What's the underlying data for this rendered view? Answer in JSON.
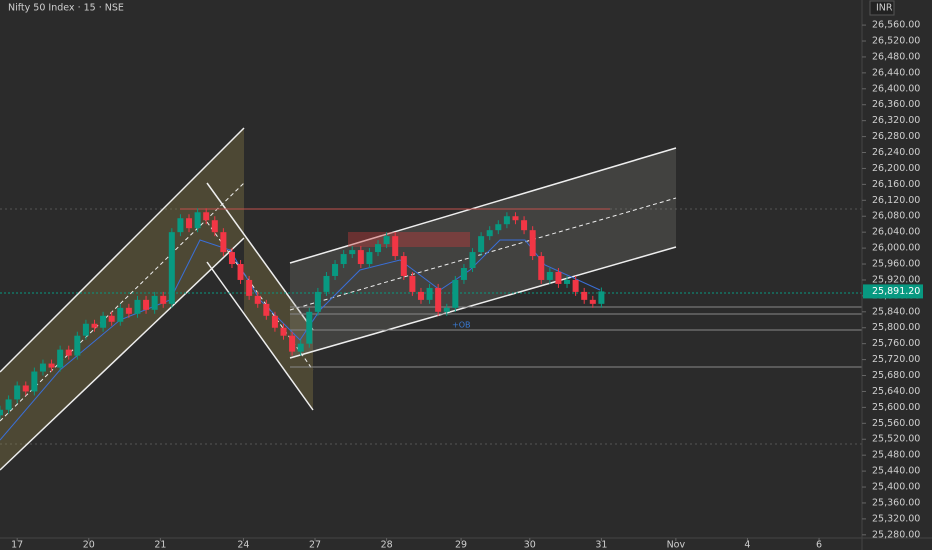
{
  "chart_data": {
    "type": "candlestick",
    "title": "Nifty 50 Index · 15 · NSE",
    "currency": "INR",
    "annotations": [
      "+OB"
    ],
    "up_color": "#089981",
    "down_color": "#f23645",
    "last_price": {
      "value": 25891.2,
      "label": "25,891.20"
    },
    "x": [
      0,
      3,
      6,
      9,
      12,
      15,
      18,
      21,
      24,
      27,
      30,
      33,
      36,
      39,
      42,
      45,
      48,
      51,
      54,
      57,
      60,
      63,
      66,
      69,
      72,
      75,
      78,
      81,
      84,
      87,
      90,
      93,
      96,
      99,
      102,
      105,
      108,
      111,
      114,
      117,
      120,
      123,
      126,
      129,
      132,
      135,
      138,
      141,
      144,
      147,
      150,
      153,
      156,
      159,
      162,
      165,
      168,
      171,
      174,
      177,
      180,
      183,
      186,
      189,
      192,
      195,
      198,
      201,
      204,
      207,
      210
    ],
    "open": [
      25580,
      25594,
      25620,
      25655,
      25640,
      25690,
      25710,
      25700,
      25745,
      25730,
      25780,
      25810,
      25800,
      25830,
      25815,
      25850,
      25835,
      25870,
      25845,
      25880,
      25860,
      26040,
      26075,
      26050,
      26090,
      26070,
      26040,
      25990,
      25960,
      25920,
      25880,
      25860,
      25830,
      25800,
      25780,
      25740,
      25760,
      25840,
      25890,
      25930,
      25960,
      25985,
      25995,
      25960,
      25990,
      26010,
      26030,
      25980,
      25930,
      25890,
      25870,
      25900,
      25840,
      25850,
      25920,
      25950,
      25990,
      26030,
      26045,
      26060,
      26080,
      26070,
      26045,
      25980,
      25920,
      25940,
      25910,
      25920,
      25890,
      25870,
      25860
    ],
    "high": [
      25604,
      25630,
      25665,
      25665,
      25700,
      25720,
      25720,
      25755,
      25755,
      25790,
      25820,
      25820,
      25840,
      25840,
      25860,
      25860,
      25880,
      25880,
      25890,
      25890,
      26050,
      26085,
      26085,
      26100,
      26100,
      26080,
      26050,
      26000,
      25970,
      25930,
      25890,
      25870,
      25840,
      25810,
      25790,
      25770,
      25850,
      25900,
      25940,
      25970,
      25995,
      26005,
      26005,
      26000,
      26020,
      26040,
      26040,
      25990,
      25940,
      25900,
      25910,
      25910,
      25860,
      25930,
      25960,
      26000,
      26040,
      26055,
      26070,
      26090,
      26090,
      26080,
      26055,
      25990,
      25950,
      25950,
      25930,
      25930,
      25900,
      25880,
      25901
    ],
    "low": [
      25570,
      25584,
      25610,
      25630,
      25630,
      25680,
      25690,
      25690,
      25720,
      25720,
      25770,
      25790,
      25790,
      25805,
      25805,
      25825,
      25825,
      25835,
      25835,
      25850,
      25850,
      26030,
      26040,
      26040,
      26060,
      26030,
      25980,
      25950,
      25910,
      25870,
      25850,
      25820,
      25790,
      25770,
      25730,
      25730,
      25750,
      25830,
      25880,
      25920,
      25950,
      25975,
      25950,
      25950,
      25980,
      26000,
      25970,
      25920,
      25880,
      25860,
      25860,
      25830,
      25830,
      25840,
      25910,
      25940,
      25980,
      26020,
      26035,
      26050,
      26060,
      26035,
      25970,
      25910,
      25910,
      25900,
      25900,
      25880,
      25860,
      25850,
      25850
    ],
    "close": [
      25594,
      25620,
      25655,
      25640,
      25690,
      25710,
      25700,
      25745,
      25730,
      25780,
      25810,
      25800,
      25830,
      25815,
      25850,
      25835,
      25870,
      25845,
      25880,
      25860,
      26040,
      26075,
      26050,
      26090,
      26070,
      26040,
      25990,
      25960,
      25920,
      25880,
      25860,
      25830,
      25800,
      25780,
      25740,
      25760,
      25840,
      25890,
      25930,
      25960,
      25985,
      25995,
      25960,
      25990,
      26010,
      26030,
      25980,
      25930,
      25890,
      25870,
      25900,
      25840,
      25850,
      25920,
      25950,
      25990,
      26030,
      26045,
      26060,
      26080,
      26070,
      26045,
      25980,
      25920,
      25940,
      25910,
      25920,
      25890,
      25870,
      25860,
      25891.2
    ],
    "xlim": [
      0,
      301
    ],
    "ylim": [
      25272,
      26623
    ],
    "xticks": [
      {
        "value": 6,
        "label": "17"
      },
      {
        "value": 31,
        "label": "20"
      },
      {
        "value": 56,
        "label": "21"
      },
      {
        "value": 85,
        "label": "24"
      },
      {
        "value": 110,
        "label": "27"
      },
      {
        "value": 135,
        "label": "28"
      },
      {
        "value": 161,
        "label": "29"
      },
      {
        "value": 185,
        "label": "30"
      },
      {
        "value": 210,
        "label": "31"
      },
      {
        "value": 236,
        "label": "Nov"
      },
      {
        "value": 261,
        "label": "4"
      },
      {
        "value": 286,
        "label": "6"
      }
    ],
    "yticks": [
      {
        "value": 25280,
        "label": "25,280.00"
      },
      {
        "value": 25320,
        "label": "25,320.00"
      },
      {
        "value": 25360,
        "label": "25,360.00"
      },
      {
        "value": 25400,
        "label": "25,400.00"
      },
      {
        "value": 25440,
        "label": "25,440.00"
      },
      {
        "value": 25480,
        "label": "25,480.00"
      },
      {
        "value": 25520,
        "label": "25,520.00"
      },
      {
        "value": 25560,
        "label": "25,560.00"
      },
      {
        "value": 25600,
        "label": "25,600.00"
      },
      {
        "value": 25640,
        "label": "25,640.00"
      },
      {
        "value": 25680,
        "label": "25,680.00"
      },
      {
        "value": 25720,
        "label": "25,720.00"
      },
      {
        "value": 25760,
        "label": "25,760.00"
      },
      {
        "value": 25800,
        "label": "25,800.00"
      },
      {
        "value": 25840,
        "label": "25,840.00"
      },
      {
        "value": 25880,
        "label": "25,880.00"
      },
      {
        "value": 25920,
        "label": "25,920.00"
      },
      {
        "value": 25960,
        "label": "25,960.00"
      },
      {
        "value": 26000,
        "label": "26,000.00"
      },
      {
        "value": 26040,
        "label": "26,040.00"
      },
      {
        "value": 26080,
        "label": "26,080.00"
      },
      {
        "value": 26120,
        "label": "26,120.00"
      },
      {
        "value": 26160,
        "label": "26,160.00"
      },
      {
        "value": 26200,
        "label": "26,200.00"
      },
      {
        "value": 26240,
        "label": "26,240.00"
      },
      {
        "value": 26280,
        "label": "26,280.00"
      },
      {
        "value": 26320,
        "label": "26,320.00"
      },
      {
        "value": 26360,
        "label": "26,360.00"
      },
      {
        "value": 26400,
        "label": "26,400.00"
      },
      {
        "value": 26440,
        "label": "26,440.00"
      },
      {
        "value": 26480,
        "label": "26,480.00"
      },
      {
        "value": 26520,
        "label": "26,520.00"
      },
      {
        "value": 26560,
        "label": "26,560.00"
      }
    ]
  }
}
